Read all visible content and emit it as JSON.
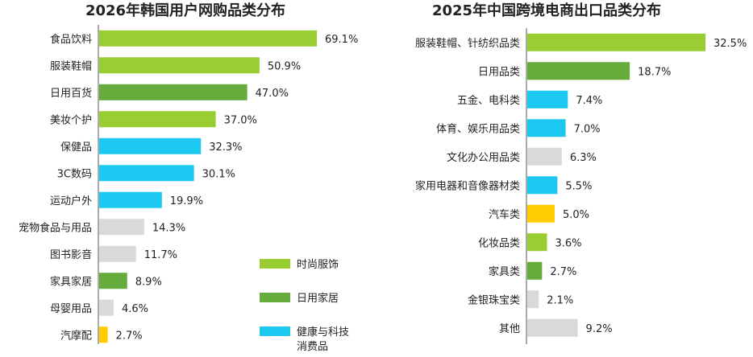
{
  "colors": {
    "fashion": "#9ACD32",
    "home": "#66AC3D",
    "tech": "#1CC8F0",
    "other": "#D9D9D9",
    "auto": "#FFCC00",
    "text": "#222222",
    "axis": "#555555"
  },
  "chart_data": [
    {
      "type": "bar",
      "orientation": "horizontal",
      "title": "2026年韩国用户网购品类分布",
      "categories": [
        "食品饮料",
        "服装鞋帽",
        "日用百货",
        "美妆个护",
        "保健品",
        "3C数码",
        "运动户外",
        "宠物食品与用品",
        "图书影音",
        "家具家居",
        "母婴用品",
        "汽摩配"
      ],
      "values": [
        69.1,
        50.9,
        47.0,
        37.0,
        32.3,
        30.1,
        19.9,
        14.3,
        11.7,
        8.9,
        4.6,
        2.7
      ],
      "value_labels": [
        "69.1%",
        "50.9%",
        "47.0%",
        "37.0%",
        "32.3%",
        "30.1%",
        "19.9%",
        "14.3%",
        "11.7%",
        "8.9%",
        "4.6%",
        "2.7%"
      ],
      "groups": [
        "fashion",
        "fashion",
        "home",
        "fashion",
        "tech",
        "tech",
        "tech",
        "other",
        "other",
        "home",
        "other",
        "auto"
      ],
      "xlim": [
        0,
        69.1
      ],
      "legend": {
        "placement": "bottom-right",
        "items": [
          {
            "label": "时尚服饰",
            "group": "fashion"
          },
          {
            "label": "日用家居",
            "group": "home"
          },
          {
            "label": "健康与科技消费品",
            "group": "tech"
          }
        ]
      }
    },
    {
      "type": "bar",
      "orientation": "horizontal",
      "title": "2025年中国跨境电商出口品类分布",
      "categories": [
        "服装鞋帽、针纺织品类",
        "日用品类",
        "五金、电科类",
        "体育、娱乐用品类",
        "文化办公用品类",
        "家用电器和音像器材类",
        "汽车类",
        "化妆品类",
        "家具类",
        "金银珠宝类",
        "其他"
      ],
      "values": [
        32.5,
        18.7,
        7.4,
        7.0,
        6.3,
        5.5,
        5.0,
        3.6,
        2.7,
        2.1,
        9.2
      ],
      "value_labels": [
        "32.5%",
        "18.7%",
        "7.4%",
        "7.0%",
        "6.3%",
        "5.5%",
        "5.0%",
        "3.6%",
        "2.7%",
        "2.1%",
        "9.2%"
      ],
      "groups": [
        "fashion",
        "home",
        "tech",
        "tech",
        "other",
        "tech",
        "auto",
        "fashion",
        "home",
        "other",
        "other"
      ],
      "xlim": [
        0,
        32.5
      ]
    }
  ]
}
